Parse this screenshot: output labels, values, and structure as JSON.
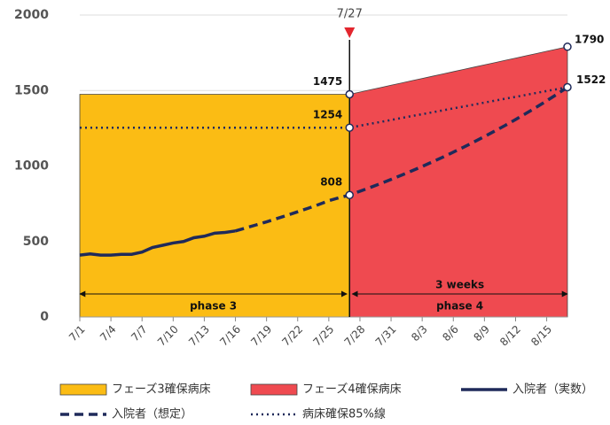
{
  "chart_data": {
    "type": "line",
    "categories": [
      "7/1",
      null,
      null,
      "7/4",
      null,
      null,
      "7/7",
      null,
      null,
      "7/10",
      null,
      null,
      "7/13",
      null,
      null,
      "7/16",
      null,
      null,
      "7/19",
      null,
      null,
      "7/22",
      null,
      null,
      "7/25",
      null,
      null,
      "7/28",
      null,
      null,
      "7/31",
      null,
      null,
      "8/3",
      null,
      null,
      "8/6",
      null,
      null,
      "8/9",
      null,
      null,
      "8/12",
      null,
      null,
      "8/15",
      null,
      null
    ],
    "ylim": [
      0,
      2000
    ],
    "yticks": [
      0,
      500,
      1000,
      1500,
      2000
    ],
    "grid": true,
    "series": [
      {
        "name": "フェーズ3確保病床",
        "kind": "area",
        "color": "#fbbc14",
        "values": [
          1475,
          1475,
          1475,
          1475,
          1475,
          1475,
          1475,
          1475,
          1475,
          1475,
          1475,
          1475,
          1475,
          1475,
          1475,
          1475,
          1475,
          1475,
          1475,
          1475,
          1475,
          1475,
          1475,
          1475,
          1475,
          1475,
          1475,
          null,
          null,
          null,
          null,
          null,
          null,
          null,
          null,
          null,
          null,
          null,
          null,
          null,
          null,
          null,
          null,
          null,
          null,
          null,
          null,
          null
        ]
      },
      {
        "name": "フェーズ4確保病床",
        "kind": "area",
        "color": "#ef4a50",
        "values": [
          null,
          null,
          null,
          null,
          null,
          null,
          null,
          null,
          null,
          null,
          null,
          null,
          null,
          null,
          null,
          null,
          null,
          null,
          null,
          null,
          null,
          null,
          null,
          null,
          null,
          null,
          1475,
          1490,
          1505,
          1520,
          1535,
          1550,
          1565,
          1580,
          1595,
          1610,
          1625,
          1640,
          1655,
          1670,
          1685,
          1700,
          1715,
          1730,
          1745,
          1760,
          1775,
          1790
        ]
      },
      {
        "name": "入院者（実数）",
        "kind": "line",
        "line_style": "solid",
        "color": "#1f2a5a",
        "values": [
          410,
          418,
          410,
          410,
          415,
          415,
          430,
          460,
          475,
          490,
          500,
          525,
          535,
          555,
          560,
          570,
          null,
          null,
          null,
          null,
          null,
          null,
          null,
          null,
          null,
          null,
          null,
          null,
          null,
          null,
          null,
          null,
          null,
          null,
          null,
          null,
          null,
          null,
          null,
          null,
          null,
          null,
          null,
          null,
          null,
          null,
          null,
          null
        ]
      },
      {
        "name": "入院者（想定）",
        "kind": "line",
        "line_style": "dashed",
        "color": "#1f2a5a",
        "values": [
          null,
          null,
          null,
          null,
          null,
          null,
          null,
          null,
          null,
          null,
          null,
          null,
          null,
          null,
          null,
          570,
          590,
          610,
          630,
          652,
          674,
          697,
          720,
          744,
          770,
          790,
          808,
          833,
          858,
          884,
          911,
          939,
          968,
          997,
          1028,
          1059,
          1092,
          1125,
          1160,
          1195,
          1232,
          1269,
          1308,
          1348,
          1389,
          1432,
          1476,
          1522
        ]
      },
      {
        "name": "病床確保85%線",
        "kind": "line",
        "line_style": "dotted",
        "color": "#1f2a5a",
        "values": [
          1254,
          1254,
          1254,
          1254,
          1254,
          1254,
          1254,
          1254,
          1254,
          1254,
          1254,
          1254,
          1254,
          1254,
          1254,
          1254,
          1254,
          1254,
          1254,
          1254,
          1254,
          1254,
          1254,
          1254,
          1254,
          1254,
          1254,
          1267,
          1280,
          1292,
          1305,
          1318,
          1331,
          1343,
          1356,
          1369,
          1382,
          1394,
          1407,
          1420,
          1433,
          1446,
          1458,
          1471,
          1484,
          1497,
          1509,
          1522
        ]
      }
    ],
    "marker_label": "7/27",
    "annotations": {
      "phase3": "phase 3",
      "weeks": "3 weeks",
      "phase4": "phase 4"
    }
  }
}
